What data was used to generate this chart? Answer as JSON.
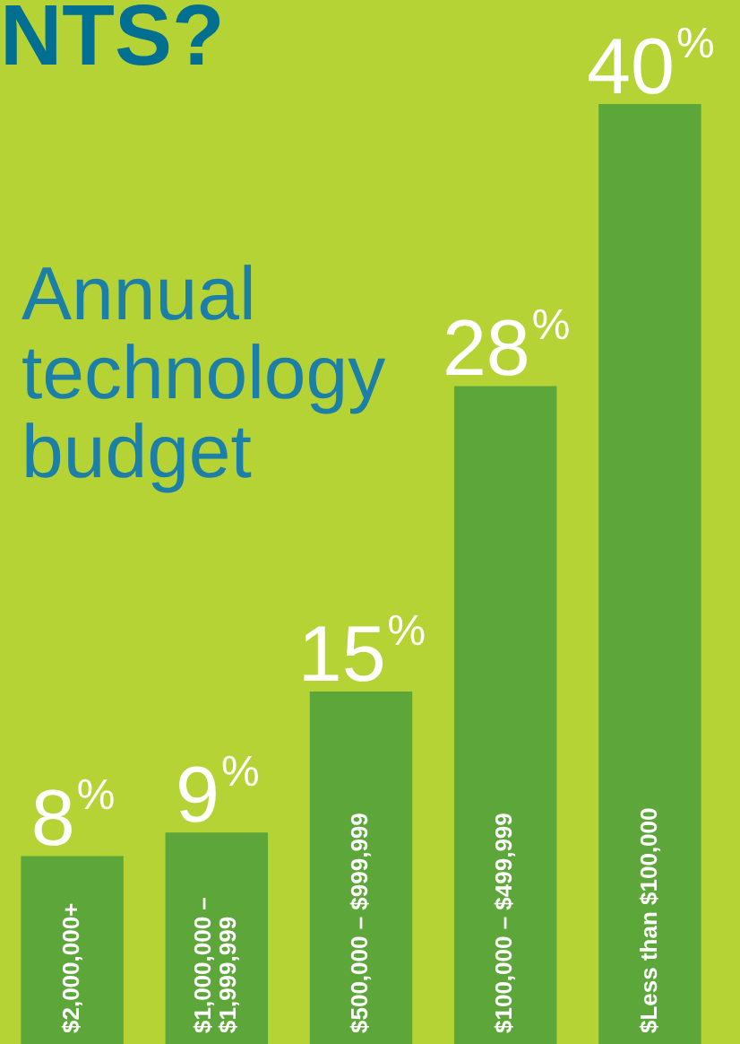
{
  "chart_data": {
    "type": "bar",
    "title": "Annual technology budget",
    "annotations": [
      "NTS?"
    ],
    "categories": [
      "$2,000,000+",
      "$1,000,000 – $1,999,999",
      "$500,000 – $999,999",
      "$100,000 – $499,999",
      "$Less than $100,000"
    ],
    "values": [
      8,
      9,
      15,
      28,
      40
    ],
    "value_labels": [
      "8%",
      "9%",
      "15%",
      "28%",
      "40%"
    ],
    "color": "#5da63a"
  }
}
